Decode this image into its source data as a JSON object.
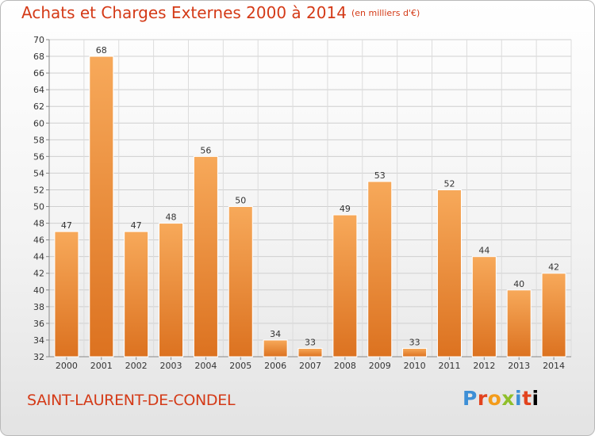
{
  "title": "Achats et Charges Externes 2000 à 2014",
  "unit": "(en milliers d'€)",
  "commune": "SAINT-LAURENT-DE-CONDEL",
  "logo": "Proxiti",
  "colors": {
    "title": "#d43a17",
    "bar_light": "#f7a95a",
    "bar_dark": "#dc7220"
  },
  "chart_data": {
    "type": "bar",
    "title": "Achats et Charges Externes 2000 à 2014",
    "subtitle": "(en milliers d'€)",
    "categories": [
      "2000",
      "2001",
      "2002",
      "2003",
      "2004",
      "2005",
      "2006",
      "2007",
      "2008",
      "2009",
      "2010",
      "2011",
      "2012",
      "2013",
      "2014"
    ],
    "values": [
      47,
      68,
      47,
      48,
      56,
      50,
      34,
      33,
      49,
      53,
      33,
      52,
      44,
      40,
      42
    ],
    "ylim": [
      32,
      70
    ],
    "yticks": [
      32,
      34,
      36,
      38,
      40,
      42,
      44,
      46,
      48,
      50,
      52,
      54,
      56,
      58,
      60,
      62,
      64,
      66,
      68,
      70
    ],
    "grid": true,
    "data_labels": true
  }
}
